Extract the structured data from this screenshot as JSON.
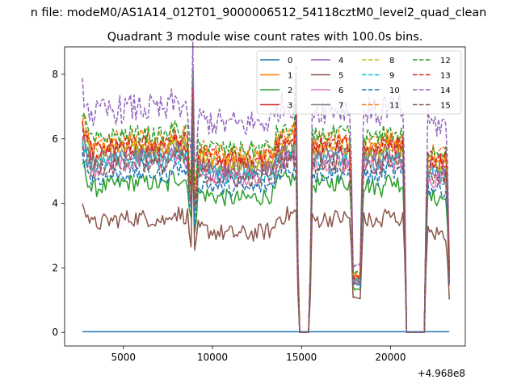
{
  "chart_data": {
    "type": "line",
    "suptitle": "n file: modeM0/AS1A14_012T01_9000006512_54118cztM0_level2_quad_clean",
    "title": "Quadrant 3 module wise count rates with 100.0s bins.",
    "xlabel": "",
    "ylabel": "",
    "offset_text": "+4.968e8",
    "xlim": [
      1700,
      24200
    ],
    "ylim": [
      -0.42,
      8.85
    ],
    "xticks": [
      5000,
      10000,
      15000,
      20000
    ],
    "yticks": [
      0,
      2,
      4,
      6,
      8
    ],
    "x_start": 2700,
    "x_end": 23300,
    "bin": 100,
    "gaps": [
      {
        "center": 8900,
        "half_width": 150,
        "floor": 0.75
      },
      {
        "center": 15150,
        "half_width": 300,
        "floor": 0.0
      },
      {
        "center": 18100,
        "half_width": 200,
        "floor": 0.3
      },
      {
        "center": 21400,
        "half_width": 500,
        "floor": 0.0
      },
      {
        "center": 23350,
        "half_width": 50,
        "floor": 0.35
      }
    ],
    "series": [
      {
        "name": "0",
        "color": "#1f77b4",
        "dash": "solid",
        "base": 0.02
      },
      {
        "name": "1",
        "color": "#ff7f0e",
        "dash": "solid",
        "base": 5.6
      },
      {
        "name": "2",
        "color": "#2ca02c",
        "dash": "solid",
        "base": 4.4
      },
      {
        "name": "3",
        "color": "#d62728",
        "dash": "solid",
        "base": 5.4
      },
      {
        "name": "4",
        "color": "#9467bd",
        "dash": "solid",
        "base": 5.2
      },
      {
        "name": "5",
        "color": "#8c564b",
        "dash": "solid",
        "base": 3.3
      },
      {
        "name": "6",
        "color": "#e377c2",
        "dash": "solid",
        "base": 5.0
      },
      {
        "name": "7",
        "color": "#7f7f7f",
        "dash": "solid",
        "base": 5.3
      },
      {
        "name": "8",
        "color": "#bcbd22",
        "dash": "dashed",
        "base": 5.5
      },
      {
        "name": "9",
        "color": "#17becf",
        "dash": "dashed",
        "base": 5.1
      },
      {
        "name": "10",
        "color": "#1f77b4",
        "dash": "dashed",
        "base": 4.7
      },
      {
        "name": "11",
        "color": "#ff7f0e",
        "dash": "dashed",
        "base": 5.8
      },
      {
        "name": "12",
        "color": "#2ca02c",
        "dash": "dashed",
        "base": 5.9
      },
      {
        "name": "13",
        "color": "#d62728",
        "dash": "dashed",
        "base": 5.6
      },
      {
        "name": "14",
        "color": "#9467bd",
        "dash": "dashed",
        "base": 6.7
      },
      {
        "name": "15",
        "color": "#8c564b",
        "dash": "dashed",
        "base": 5.0
      }
    ],
    "legend_location": "upper right",
    "legend_columns": 4
  }
}
